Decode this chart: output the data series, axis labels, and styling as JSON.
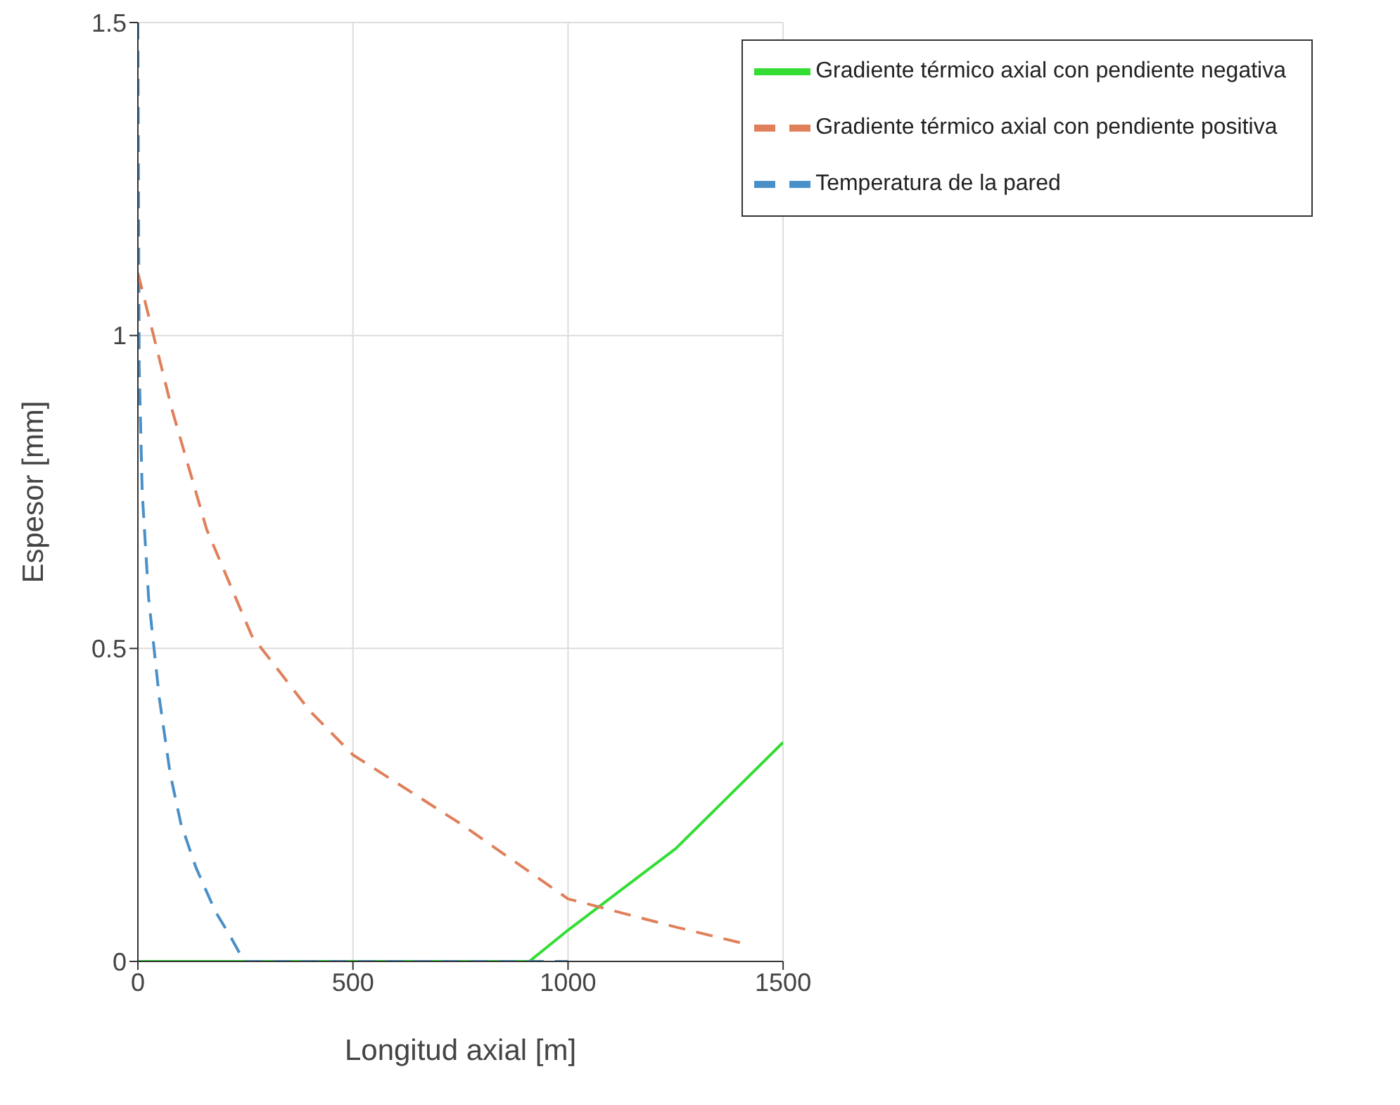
{
  "chart_data": {
    "type": "line",
    "xlabel": "Longitud axial [m]",
    "ylabel": "Espesor [mm]",
    "xlim": [
      0,
      1500
    ],
    "ylim": [
      0,
      1.5
    ],
    "xticks": [
      0,
      500,
      1000,
      1500
    ],
    "yticks": [
      0,
      0.5,
      1,
      1.5
    ],
    "grid": true,
    "legend": "top right",
    "marker": "none",
    "series": [
      {
        "name": "Gradiente térmico axial con pendiente negativa",
        "color": "#33dd33",
        "line_style": "solid",
        "x": [
          0,
          500,
          910,
          1000,
          1250,
          1500
        ],
        "values": [
          0,
          0,
          0,
          0.05,
          0.18,
          0.35
        ]
      },
      {
        "name": "Temperatura de la pared",
        "color": "#4a90c8",
        "line_style": "dashed",
        "x": [
          0,
          3,
          10,
          25,
          50,
          75,
          100,
          135,
          180,
          215,
          247,
          500,
          1000
        ],
        "values": [
          1.5,
          0.95,
          0.75,
          0.58,
          0.42,
          0.3,
          0.22,
          0.15,
          0.08,
          0.04,
          0,
          0,
          0
        ]
      },
      {
        "name": "Gradiente térmico axial con pendiente positiva",
        "color": "#e0805a",
        "line_style": "dashed",
        "x": [
          0,
          80,
          160,
          265,
          400,
          500,
          750,
          1000,
          1250,
          1400
        ],
        "values": [
          1.1,
          0.88,
          0.69,
          0.52,
          0.4,
          0.33,
          0.22,
          0.1,
          0.055,
          0.03
        ]
      }
    ]
  }
}
